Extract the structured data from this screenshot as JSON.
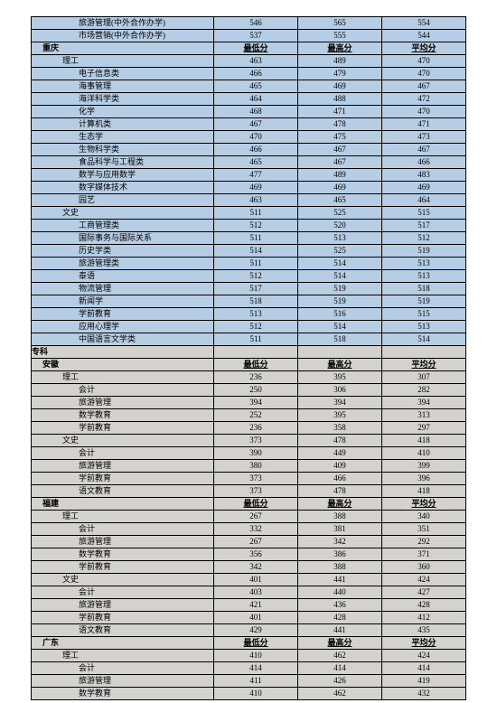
{
  "headers": {
    "min": "最低分",
    "max": "最高分",
    "avg": "平均分"
  },
  "section1": {
    "bg": "blue",
    "top_rows": [
      {
        "name": "旅游管理(中外合作办学)",
        "indent": 3,
        "min": 546,
        "max": 565,
        "avg": 554
      },
      {
        "name": "市场营销(中外合作办学)",
        "indent": 3,
        "min": 537,
        "max": 555,
        "avg": 544
      }
    ],
    "groups": [
      {
        "region": "重庆",
        "cats": [
          {
            "cat": "理工",
            "rows": [
              {
                "name": "电子信息类",
                "min": 466,
                "max": 479,
                "avg": 470
              },
              {
                "name": "海事管理",
                "min": 465,
                "max": 469,
                "avg": 467
              },
              {
                "name": "海洋科学类",
                "min": 464,
                "max": 488,
                "avg": 472
              },
              {
                "name": "化学",
                "min": 468,
                "max": 471,
                "avg": 470
              },
              {
                "name": "计算机类",
                "min": 467,
                "max": 478,
                "avg": 471
              },
              {
                "name": "生态学",
                "min": 470,
                "max": 475,
                "avg": 473
              },
              {
                "name": "生物科学类",
                "min": 466,
                "max": 467,
                "avg": 467
              },
              {
                "name": "食品科学与工程类",
                "min": 465,
                "max": 467,
                "avg": 466
              },
              {
                "name": "数学与应用数学",
                "min": 477,
                "max": 489,
                "avg": 483
              },
              {
                "name": "数字媒体技术",
                "min": 469,
                "max": 469,
                "avg": 469
              },
              {
                "name": "园艺",
                "min": 463,
                "max": 465,
                "avg": 464
              }
            ],
            "cat_row": {
              "min": 463,
              "max": 489,
              "avg": 470
            }
          },
          {
            "cat": "文史",
            "rows": [
              {
                "name": "工商管理类",
                "min": 512,
                "max": 520,
                "avg": 517
              },
              {
                "name": "国际事务与国际关系",
                "min": 511,
                "max": 513,
                "avg": 512
              },
              {
                "name": "历史学类",
                "min": 514,
                "max": 525,
                "avg": 519
              },
              {
                "name": "旅游管理类",
                "min": 511,
                "max": 514,
                "avg": 513
              },
              {
                "name": "泰语",
                "min": 512,
                "max": 514,
                "avg": 513
              },
              {
                "name": "物流管理",
                "min": 517,
                "max": 519,
                "avg": 518
              },
              {
                "name": "新闻学",
                "min": 518,
                "max": 519,
                "avg": 519
              },
              {
                "name": "学前教育",
                "min": 513,
                "max": 516,
                "avg": 515
              },
              {
                "name": "应用心理学",
                "min": 512,
                "max": 514,
                "avg": 513
              },
              {
                "name": "中国语言文学类",
                "min": 511,
                "max": 518,
                "avg": 514
              }
            ],
            "cat_row": {
              "min": 511,
              "max": 525,
              "avg": 515
            }
          }
        ]
      }
    ]
  },
  "section2": {
    "bg": "grey",
    "label": "专科",
    "groups": [
      {
        "region": "安徽",
        "cats": [
          {
            "cat": "理工",
            "rows": [
              {
                "name": "会计",
                "min": 250,
                "max": 306,
                "avg": 282
              },
              {
                "name": "旅游管理",
                "min": 394,
                "max": 394,
                "avg": 394
              },
              {
                "name": "数学教育",
                "min": 252,
                "max": 395,
                "avg": 313
              },
              {
                "name": "学前教育",
                "min": 236,
                "max": 358,
                "avg": 297
              }
            ],
            "cat_row": {
              "min": 236,
              "max": 395,
              "avg": 307
            }
          },
          {
            "cat": "文史",
            "rows": [
              {
                "name": "会计",
                "min": 390,
                "max": 449,
                "avg": 410
              },
              {
                "name": "旅游管理",
                "min": 380,
                "max": 409,
                "avg": 399
              },
              {
                "name": "学前教育",
                "min": 373,
                "max": 466,
                "avg": 396
              },
              {
                "name": "语文教育",
                "min": 373,
                "max": 478,
                "avg": 418
              }
            ],
            "cat_row": {
              "min": 373,
              "max": 478,
              "avg": 418
            }
          }
        ]
      },
      {
        "region": "福建",
        "cats": [
          {
            "cat": "理工",
            "rows": [
              {
                "name": "会计",
                "min": 332,
                "max": 381,
                "avg": 351
              },
              {
                "name": "旅游管理",
                "min": 267,
                "max": 342,
                "avg": 292
              },
              {
                "name": "数学教育",
                "min": 356,
                "max": 386,
                "avg": 371
              },
              {
                "name": "学前教育",
                "min": 342,
                "max": 388,
                "avg": 360
              }
            ],
            "cat_row": {
              "min": 267,
              "max": 388,
              "avg": 340
            }
          },
          {
            "cat": "文史",
            "rows": [
              {
                "name": "会计",
                "min": 403,
                "max": 440,
                "avg": 427
              },
              {
                "name": "旅游管理",
                "min": 421,
                "max": 436,
                "avg": 428
              },
              {
                "name": "学前教育",
                "min": 401,
                "max": 428,
                "avg": 412
              },
              {
                "name": "语文教育",
                "min": 429,
                "max": 441,
                "avg": 435
              }
            ],
            "cat_row": {
              "min": 401,
              "max": 441,
              "avg": 424
            }
          }
        ]
      },
      {
        "region": "广东",
        "cats": [
          {
            "cat": "理工",
            "rows": [
              {
                "name": "会计",
                "min": 414,
                "max": 414,
                "avg": 414
              },
              {
                "name": "旅游管理",
                "min": 411,
                "max": 426,
                "avg": 419
              },
              {
                "name": "数学教育",
                "min": 410,
                "max": 462,
                "avg": 432
              }
            ],
            "cat_row": {
              "min": 410,
              "max": 462,
              "avg": 424
            }
          }
        ]
      }
    ]
  }
}
